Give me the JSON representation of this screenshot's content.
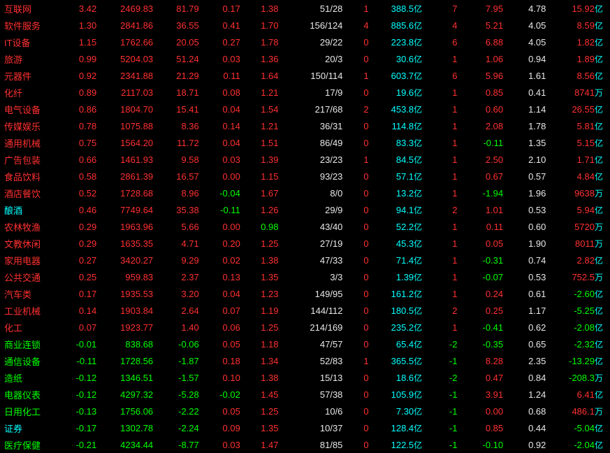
{
  "colors": {
    "red": "#ff3030",
    "green": "#00ff00",
    "white": "#e8e8e8",
    "cyan": "#00ffff",
    "yellow": "#ffff30",
    "gray": "#c0c0c0",
    "background": "#000000"
  },
  "units": {
    "yi": "亿",
    "wan": "万"
  },
  "rows": [
    {
      "name": "互联网",
      "name_c": "red",
      "c2": "3.42",
      "c2_c": "red",
      "c3": "2469.83",
      "c3_c": "red",
      "c4": "81.79",
      "c4_c": "red",
      "c5": "0.17",
      "c5_c": "red",
      "c6": "1.38",
      "c6_c": "red",
      "c7": "51/28",
      "c7_c": "white",
      "c8": "1",
      "c8_c": "red",
      "c9": "388.5",
      "c9_u": "亿",
      "c9_c": "cyan",
      "c10": "7",
      "c10_c": "red",
      "c11": "7.95",
      "c11_c": "red",
      "c12": "4.78",
      "c12_c": "white",
      "c13": "15.92",
      "c13_u": "亿",
      "c13_c": "red"
    },
    {
      "name": "软件服务",
      "name_c": "red",
      "c2": "1.30",
      "c2_c": "red",
      "c3": "2841.86",
      "c3_c": "red",
      "c4": "36.55",
      "c4_c": "red",
      "c5": "0.41",
      "c5_c": "red",
      "c6": "1.70",
      "c6_c": "red",
      "c7": "156/124",
      "c7_c": "white",
      "c8": "4",
      "c8_c": "red",
      "c9": "885.6",
      "c9_u": "亿",
      "c9_c": "cyan",
      "c10": "4",
      "c10_c": "red",
      "c11": "5.21",
      "c11_c": "red",
      "c12": "4.05",
      "c12_c": "white",
      "c13": "8.59",
      "c13_u": "亿",
      "c13_c": "red"
    },
    {
      "name": "IT设备",
      "name_c": "red",
      "c2": "1.15",
      "c2_c": "red",
      "c3": "1762.66",
      "c3_c": "red",
      "c4": "20.05",
      "c4_c": "red",
      "c5": "0.27",
      "c5_c": "red",
      "c6": "1.78",
      "c6_c": "red",
      "c7": "29/22",
      "c7_c": "white",
      "c8": "0",
      "c8_c": "red",
      "c9": "223.8",
      "c9_u": "亿",
      "c9_c": "cyan",
      "c10": "6",
      "c10_c": "red",
      "c11": "6.88",
      "c11_c": "red",
      "c12": "4.05",
      "c12_c": "white",
      "c13": "1.82",
      "c13_u": "亿",
      "c13_c": "red"
    },
    {
      "name": "旅游",
      "name_c": "red",
      "c2": "0.99",
      "c2_c": "red",
      "c3": "5204.03",
      "c3_c": "red",
      "c4": "51.24",
      "c4_c": "red",
      "c5": "0.03",
      "c5_c": "red",
      "c6": "1.36",
      "c6_c": "red",
      "c7": "20/3",
      "c7_c": "white",
      "c8": "0",
      "c8_c": "red",
      "c9": "30.6",
      "c9_u": "亿",
      "c9_c": "cyan",
      "c10": "1",
      "c10_c": "red",
      "c11": "1.06",
      "c11_c": "red",
      "c12": "0.94",
      "c12_c": "white",
      "c13": "1.89",
      "c13_u": "亿",
      "c13_c": "red"
    },
    {
      "name": "元器件",
      "name_c": "red",
      "c2": "0.92",
      "c2_c": "red",
      "c3": "2341.88",
      "c3_c": "red",
      "c4": "21.29",
      "c4_c": "red",
      "c5": "0.11",
      "c5_c": "red",
      "c6": "1.64",
      "c6_c": "red",
      "c7": "150/114",
      "c7_c": "white",
      "c8": "1",
      "c8_c": "red",
      "c9": "603.7",
      "c9_u": "亿",
      "c9_c": "cyan",
      "c10": "6",
      "c10_c": "red",
      "c11": "5.96",
      "c11_c": "red",
      "c12": "1.61",
      "c12_c": "white",
      "c13": "8.56",
      "c13_u": "亿",
      "c13_c": "red"
    },
    {
      "name": "化纤",
      "name_c": "red",
      "c2": "0.89",
      "c2_c": "red",
      "c3": "2117.03",
      "c3_c": "red",
      "c4": "18.71",
      "c4_c": "red",
      "c5": "0.08",
      "c5_c": "red",
      "c6": "1.21",
      "c6_c": "red",
      "c7": "17/9",
      "c7_c": "white",
      "c8": "0",
      "c8_c": "red",
      "c9": "19.6",
      "c9_u": "亿",
      "c9_c": "cyan",
      "c10": "1",
      "c10_c": "red",
      "c11": "0.85",
      "c11_c": "red",
      "c12": "0.41",
      "c12_c": "white",
      "c13": "8741",
      "c13_u": "万",
      "c13_c": "red"
    },
    {
      "name": "电气设备",
      "name_c": "red",
      "c2": "0.86",
      "c2_c": "red",
      "c3": "1804.70",
      "c3_c": "red",
      "c4": "15.41",
      "c4_c": "red",
      "c5": "0.04",
      "c5_c": "red",
      "c6": "1.54",
      "c6_c": "red",
      "c7": "217/68",
      "c7_c": "white",
      "c8": "2",
      "c8_c": "red",
      "c9": "453.8",
      "c9_u": "亿",
      "c9_c": "cyan",
      "c10": "1",
      "c10_c": "red",
      "c11": "0.60",
      "c11_c": "red",
      "c12": "1.14",
      "c12_c": "white",
      "c13": "26.55",
      "c13_u": "亿",
      "c13_c": "red"
    },
    {
      "name": "传媒娱乐",
      "name_c": "red",
      "c2": "0.78",
      "c2_c": "red",
      "c3": "1075.88",
      "c3_c": "red",
      "c4": "8.36",
      "c4_c": "red",
      "c5": "0.14",
      "c5_c": "red",
      "c6": "1.21",
      "c6_c": "red",
      "c7": "36/31",
      "c7_c": "white",
      "c8": "0",
      "c8_c": "red",
      "c9": "114.8",
      "c9_u": "亿",
      "c9_c": "cyan",
      "c10": "1",
      "c10_c": "red",
      "c11": "2.08",
      "c11_c": "red",
      "c12": "1.78",
      "c12_c": "white",
      "c13": "5.81",
      "c13_u": "亿",
      "c13_c": "red"
    },
    {
      "name": "通用机械",
      "name_c": "red",
      "c2": "0.75",
      "c2_c": "red",
      "c3": "1564.20",
      "c3_c": "red",
      "c4": "11.72",
      "c4_c": "red",
      "c5": "0.04",
      "c5_c": "red",
      "c6": "1.51",
      "c6_c": "red",
      "c7": "86/49",
      "c7_c": "white",
      "c8": "0",
      "c8_c": "red",
      "c9": "83.3",
      "c9_u": "亿",
      "c9_c": "cyan",
      "c10": "1",
      "c10_c": "red",
      "c11": "-0.11",
      "c11_c": "green",
      "c12": "1.35",
      "c12_c": "white",
      "c13": "5.15",
      "c13_u": "亿",
      "c13_c": "red"
    },
    {
      "name": "广告包装",
      "name_c": "red",
      "c2": "0.66",
      "c2_c": "red",
      "c3": "1461.93",
      "c3_c": "red",
      "c4": "9.58",
      "c4_c": "red",
      "c5": "0.03",
      "c5_c": "red",
      "c6": "1.39",
      "c6_c": "red",
      "c7": "23/23",
      "c7_c": "white",
      "c8": "1",
      "c8_c": "red",
      "c9": "84.5",
      "c9_u": "亿",
      "c9_c": "cyan",
      "c10": "1",
      "c10_c": "red",
      "c11": "2.50",
      "c11_c": "red",
      "c12": "2.10",
      "c12_c": "white",
      "c13": "1.71",
      "c13_u": "亿",
      "c13_c": "red"
    },
    {
      "name": "食品饮料",
      "name_c": "red",
      "c2": "0.58",
      "c2_c": "red",
      "c3": "2861.39",
      "c3_c": "red",
      "c4": "16.57",
      "c4_c": "red",
      "c5": "0.00",
      "c5_c": "red",
      "c6": "1.15",
      "c6_c": "red",
      "c7": "93/23",
      "c7_c": "white",
      "c8": "0",
      "c8_c": "red",
      "c9": "57.1",
      "c9_u": "亿",
      "c9_c": "cyan",
      "c10": "1",
      "c10_c": "red",
      "c11": "0.67",
      "c11_c": "red",
      "c12": "0.57",
      "c12_c": "white",
      "c13": "4.84",
      "c13_u": "亿",
      "c13_c": "red"
    },
    {
      "name": "酒店餐饮",
      "name_c": "red",
      "c2": "0.52",
      "c2_c": "red",
      "c3": "1728.68",
      "c3_c": "red",
      "c4": "8.96",
      "c4_c": "red",
      "c5": "-0.04",
      "c5_c": "green",
      "c6": "1.67",
      "c6_c": "red",
      "c7": "8/0",
      "c7_c": "white",
      "c8": "0",
      "c8_c": "red",
      "c9": "13.2",
      "c9_u": "亿",
      "c9_c": "cyan",
      "c10": "1",
      "c10_c": "red",
      "c11": "-1.94",
      "c11_c": "green",
      "c12": "1.96",
      "c12_c": "white",
      "c13": "9638",
      "c13_u": "万",
      "c13_c": "red"
    },
    {
      "name": "酿酒",
      "name_c": "cyan",
      "c2": "0.46",
      "c2_c": "red",
      "c3": "7749.64",
      "c3_c": "red",
      "c4": "35.38",
      "c4_c": "red",
      "c5": "-0.11",
      "c5_c": "green",
      "c6": "1.26",
      "c6_c": "red",
      "c7": "29/9",
      "c7_c": "white",
      "c8": "0",
      "c8_c": "red",
      "c9": "94.1",
      "c9_u": "亿",
      "c9_c": "cyan",
      "c10": "2",
      "c10_c": "red",
      "c11": "1.01",
      "c11_c": "red",
      "c12": "0.53",
      "c12_c": "white",
      "c13": "5.94",
      "c13_u": "亿",
      "c13_c": "red"
    },
    {
      "name": "农林牧渔",
      "name_c": "red",
      "c2": "0.29",
      "c2_c": "red",
      "c3": "1963.96",
      "c3_c": "red",
      "c4": "5.66",
      "c4_c": "red",
      "c5": "0.00",
      "c5_c": "red",
      "c6": "0.98",
      "c6_c": "green",
      "c7": "43/40",
      "c7_c": "white",
      "c8": "0",
      "c8_c": "red",
      "c9": "52.2",
      "c9_u": "亿",
      "c9_c": "cyan",
      "c10": "1",
      "c10_c": "red",
      "c11": "0.11",
      "c11_c": "red",
      "c12": "0.60",
      "c12_c": "white",
      "c13": "5720",
      "c13_u": "万",
      "c13_c": "red"
    },
    {
      "name": "文教休闲",
      "name_c": "red",
      "c2": "0.29",
      "c2_c": "red",
      "c3": "1635.35",
      "c3_c": "red",
      "c4": "4.71",
      "c4_c": "red",
      "c5": "0.20",
      "c5_c": "red",
      "c6": "1.25",
      "c6_c": "red",
      "c7": "27/19",
      "c7_c": "white",
      "c8": "0",
      "c8_c": "red",
      "c9": "45.3",
      "c9_u": "亿",
      "c9_c": "cyan",
      "c10": "1",
      "c10_c": "red",
      "c11": "0.05",
      "c11_c": "red",
      "c12": "1.90",
      "c12_c": "white",
      "c13": "8011",
      "c13_u": "万",
      "c13_c": "red"
    },
    {
      "name": "家用电器",
      "name_c": "red",
      "c2": "0.27",
      "c2_c": "red",
      "c3": "3420.27",
      "c3_c": "red",
      "c4": "9.29",
      "c4_c": "red",
      "c5": "0.02",
      "c5_c": "red",
      "c6": "1.38",
      "c6_c": "red",
      "c7": "47/33",
      "c7_c": "white",
      "c8": "0",
      "c8_c": "red",
      "c9": "71.4",
      "c9_u": "亿",
      "c9_c": "cyan",
      "c10": "1",
      "c10_c": "red",
      "c11": "-0.31",
      "c11_c": "green",
      "c12": "0.74",
      "c12_c": "white",
      "c13": "2.82",
      "c13_u": "亿",
      "c13_c": "red"
    },
    {
      "name": "公共交通",
      "name_c": "red",
      "c2": "0.25",
      "c2_c": "red",
      "c3": "959.83",
      "c3_c": "red",
      "c4": "2.37",
      "c4_c": "red",
      "c5": "0.13",
      "c5_c": "red",
      "c6": "1.35",
      "c6_c": "red",
      "c7": "3/3",
      "c7_c": "white",
      "c8": "0",
      "c8_c": "red",
      "c9": "1.39",
      "c9_u": "亿",
      "c9_c": "cyan",
      "c10": "1",
      "c10_c": "red",
      "c11": "-0.07",
      "c11_c": "green",
      "c12": "0.53",
      "c12_c": "white",
      "c13": "752.5",
      "c13_u": "万",
      "c13_c": "red"
    },
    {
      "name": "汽车类",
      "name_c": "red",
      "c2": "0.17",
      "c2_c": "red",
      "c3": "1935.53",
      "c3_c": "red",
      "c4": "3.20",
      "c4_c": "red",
      "c5": "0.04",
      "c5_c": "red",
      "c6": "1.23",
      "c6_c": "red",
      "c7": "149/95",
      "c7_c": "white",
      "c8": "0",
      "c8_c": "red",
      "c9": "161.2",
      "c9_u": "亿",
      "c9_c": "cyan",
      "c10": "1",
      "c10_c": "red",
      "c11": "0.24",
      "c11_c": "red",
      "c12": "0.61",
      "c12_c": "white",
      "c13": "-2.60",
      "c13_u": "亿",
      "c13_c": "green"
    },
    {
      "name": "工业机械",
      "name_c": "red",
      "c2": "0.14",
      "c2_c": "red",
      "c3": "1903.84",
      "c3_c": "red",
      "c4": "2.64",
      "c4_c": "red",
      "c5": "0.07",
      "c5_c": "red",
      "c6": "1.19",
      "c6_c": "red",
      "c7": "144/112",
      "c7_c": "white",
      "c8": "0",
      "c8_c": "red",
      "c9": "180.5",
      "c9_u": "亿",
      "c9_c": "cyan",
      "c10": "2",
      "c10_c": "red",
      "c11": "0.25",
      "c11_c": "red",
      "c12": "1.17",
      "c12_c": "white",
      "c13": "-5.25",
      "c13_u": "亿",
      "c13_c": "green"
    },
    {
      "name": "化工",
      "name_c": "red",
      "c2": "0.07",
      "c2_c": "red",
      "c3": "1923.77",
      "c3_c": "red",
      "c4": "1.40",
      "c4_c": "red",
      "c5": "0.06",
      "c5_c": "red",
      "c6": "1.25",
      "c6_c": "red",
      "c7": "214/169",
      "c7_c": "white",
      "c8": "0",
      "c8_c": "red",
      "c9": "235.2",
      "c9_u": "亿",
      "c9_c": "cyan",
      "c10": "1",
      "c10_c": "red",
      "c11": "-0.41",
      "c11_c": "green",
      "c12": "0.62",
      "c12_c": "white",
      "c13": "-2.08",
      "c13_u": "亿",
      "c13_c": "green"
    },
    {
      "name": "商业连锁",
      "name_c": "green",
      "c2": "-0.01",
      "c2_c": "green",
      "c3": "838.68",
      "c3_c": "green",
      "c4": "-0.06",
      "c4_c": "green",
      "c5": "0.05",
      "c5_c": "red",
      "c6": "1.18",
      "c6_c": "red",
      "c7": "47/57",
      "c7_c": "white",
      "c8": "0",
      "c8_c": "red",
      "c9": "65.4",
      "c9_u": "亿",
      "c9_c": "cyan",
      "c10": "-2",
      "c10_c": "green",
      "c11": "-0.35",
      "c11_c": "green",
      "c12": "0.65",
      "c12_c": "white",
      "c13": "-2.32",
      "c13_u": "亿",
      "c13_c": "green"
    },
    {
      "name": "通信设备",
      "name_c": "green",
      "c2": "-0.11",
      "c2_c": "green",
      "c3": "1728.56",
      "c3_c": "green",
      "c4": "-1.87",
      "c4_c": "green",
      "c5": "0.18",
      "c5_c": "red",
      "c6": "1.34",
      "c6_c": "red",
      "c7": "52/83",
      "c7_c": "white",
      "c8": "1",
      "c8_c": "red",
      "c9": "365.5",
      "c9_u": "亿",
      "c9_c": "cyan",
      "c10": "-1",
      "c10_c": "green",
      "c11": "8.28",
      "c11_c": "red",
      "c12": "2.35",
      "c12_c": "white",
      "c13": "-13.29",
      "c13_u": "亿",
      "c13_c": "green"
    },
    {
      "name": "造纸",
      "name_c": "green",
      "c2": "-0.12",
      "c2_c": "green",
      "c3": "1346.51",
      "c3_c": "green",
      "c4": "-1.57",
      "c4_c": "green",
      "c5": "0.10",
      "c5_c": "red",
      "c6": "1.38",
      "c6_c": "red",
      "c7": "15/13",
      "c7_c": "white",
      "c8": "0",
      "c8_c": "red",
      "c9": "18.6",
      "c9_u": "亿",
      "c9_c": "cyan",
      "c10": "-2",
      "c10_c": "green",
      "c11": "0.47",
      "c11_c": "red",
      "c12": "0.84",
      "c12_c": "white",
      "c13": "-208.3",
      "c13_u": "万",
      "c13_c": "green"
    },
    {
      "name": "电器仪表",
      "name_c": "green",
      "c2": "-0.12",
      "c2_c": "green",
      "c3": "4297.32",
      "c3_c": "green",
      "c4": "-5.28",
      "c4_c": "green",
      "c5": "-0.02",
      "c5_c": "green",
      "c6": "1.45",
      "c6_c": "red",
      "c7": "57/38",
      "c7_c": "white",
      "c8": "0",
      "c8_c": "red",
      "c9": "105.9",
      "c9_u": "亿",
      "c9_c": "cyan",
      "c10": "-1",
      "c10_c": "green",
      "c11": "3.91",
      "c11_c": "red",
      "c12": "1.24",
      "c12_c": "white",
      "c13": "6.41",
      "c13_u": "亿",
      "c13_c": "red"
    },
    {
      "name": "日用化工",
      "name_c": "green",
      "c2": "-0.13",
      "c2_c": "green",
      "c3": "1756.06",
      "c3_c": "green",
      "c4": "-2.22",
      "c4_c": "green",
      "c5": "0.05",
      "c5_c": "red",
      "c6": "1.25",
      "c6_c": "red",
      "c7": "10/6",
      "c7_c": "white",
      "c8": "0",
      "c8_c": "red",
      "c9": "7.30",
      "c9_u": "亿",
      "c9_c": "cyan",
      "c10": "-1",
      "c10_c": "green",
      "c11": "0.00",
      "c11_c": "red",
      "c12": "0.68",
      "c12_c": "white",
      "c13": "486.1",
      "c13_u": "万",
      "c13_c": "red"
    },
    {
      "name": "证券",
      "name_c": "cyan",
      "c2": "-0.17",
      "c2_c": "green",
      "c3": "1302.78",
      "c3_c": "green",
      "c4": "-2.24",
      "c4_c": "green",
      "c5": "0.09",
      "c5_c": "red",
      "c6": "1.35",
      "c6_c": "red",
      "c7": "10/37",
      "c7_c": "white",
      "c8": "0",
      "c8_c": "red",
      "c9": "128.4",
      "c9_u": "亿",
      "c9_c": "cyan",
      "c10": "-1",
      "c10_c": "green",
      "c11": "0.85",
      "c11_c": "red",
      "c12": "0.44",
      "c12_c": "white",
      "c13": "-5.04",
      "c13_u": "亿",
      "c13_c": "green"
    },
    {
      "name": "医疗保健",
      "name_c": "green",
      "c2": "-0.21",
      "c2_c": "green",
      "c3": "4234.44",
      "c3_c": "green",
      "c4": "-8.77",
      "c4_c": "green",
      "c5": "0.03",
      "c5_c": "red",
      "c6": "1.47",
      "c6_c": "red",
      "c7": "81/85",
      "c7_c": "white",
      "c8": "0",
      "c8_c": "red",
      "c9": "122.5",
      "c9_u": "亿",
      "c9_c": "cyan",
      "c10": "-1",
      "c10_c": "green",
      "c11": "-0.10",
      "c11_c": "green",
      "c12": "0.92",
      "c12_c": "white",
      "c13": "-2.04",
      "c13_u": "亿",
      "c13_c": "green"
    }
  ]
}
